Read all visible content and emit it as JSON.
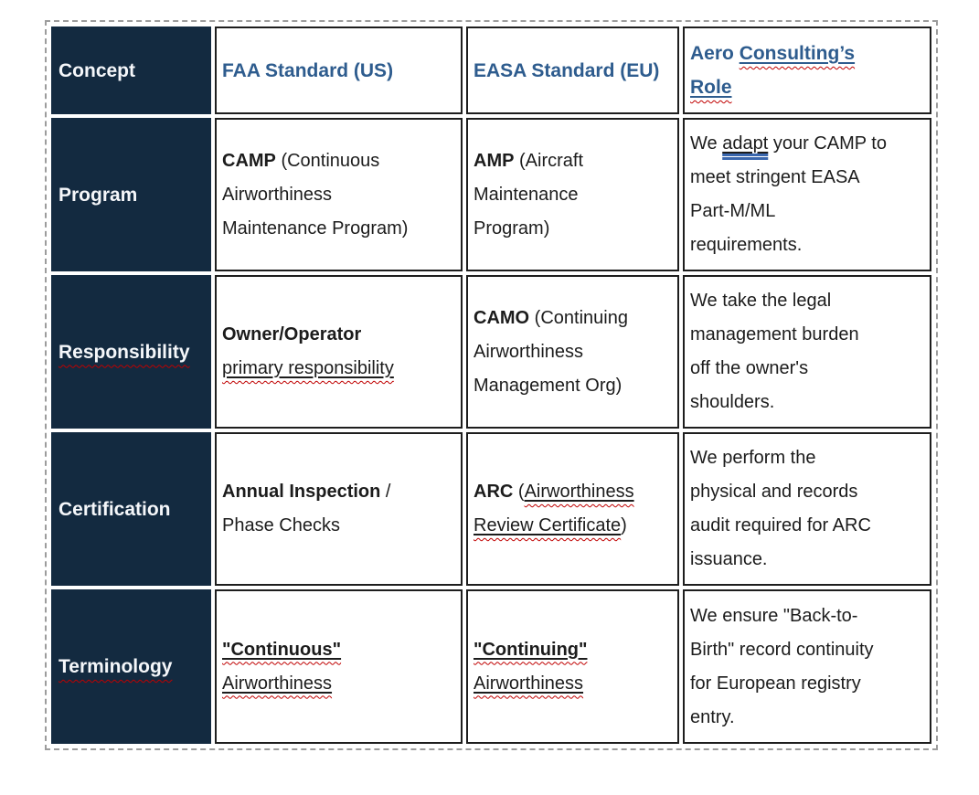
{
  "colors": {
    "row_header_navy": "#132a40",
    "column_header_blue": "#2e5c8e",
    "body_text": "#1c1c1c",
    "cell_border": "#1e1e1e",
    "outer_dashed_border": "#9c9c9c",
    "spellcheck_squiggle_red": "#c00000",
    "grammar_underline_blue": "#3a67ae"
  },
  "table": {
    "rows": [
      {
        "name": "header",
        "cells": [
          {
            "lines": [
              [
                {
                  "t": "Concept"
                }
              ]
            ]
          },
          {
            "lines": [
              [
                {
                  "t": "FAA Standard (US)"
                }
              ]
            ]
          },
          {
            "lines": [
              [
                {
                  "t": "EASA Standard (EU)"
                }
              ]
            ]
          },
          {
            "lines": [
              [
                {
                  "t": "Aero "
                },
                {
                  "t": "Consulting’s"
                }
              ],
              [
                {
                  "t": "Role"
                }
              ]
            ]
          }
        ]
      },
      {
        "name": "program",
        "cells": [
          {
            "lines": [
              [
                {
                  "t": "Program"
                }
              ]
            ]
          },
          {
            "lines": [
              [
                {
                  "t": "CAMP"
                },
                {
                  "t": " (Continuous"
                }
              ],
              [
                {
                  "t": "Airworthiness"
                }
              ],
              [
                {
                  "t": "Maintenance Program)"
                }
              ]
            ]
          },
          {
            "lines": [
              [
                {
                  "t": "AMP"
                },
                {
                  "t": " (Aircraft"
                }
              ],
              [
                {
                  "t": "Maintenance"
                }
              ],
              [
                {
                  "t": "Program)"
                }
              ]
            ]
          },
          {
            "lines": [
              [
                {
                  "t": "We "
                },
                {
                  "t": "adapt"
                },
                {
                  "t": " your CAMP to"
                }
              ],
              [
                {
                  "t": "meet stringent EASA"
                }
              ],
              [
                {
                  "t": "Part-M/ML"
                }
              ],
              [
                {
                  "t": "requirements."
                }
              ]
            ]
          }
        ]
      },
      {
        "name": "responsibility",
        "cells": [
          {
            "lines": [
              [
                {
                  "t": "Responsibility"
                }
              ]
            ]
          },
          {
            "lines": [
              [
                {
                  "t": "Owner/Operator"
                }
              ],
              [
                {
                  "t": "primary responsibility"
                }
              ]
            ]
          },
          {
            "lines": [
              [
                {
                  "t": "CAMO"
                },
                {
                  "t": " (Continuing"
                }
              ],
              [
                {
                  "t": "Airworthiness"
                }
              ],
              [
                {
                  "t": "Management Org)"
                }
              ]
            ]
          },
          {
            "lines": [
              [
                {
                  "t": "We take the legal"
                }
              ],
              [
                {
                  "t": "management burden"
                }
              ],
              [
                {
                  "t": "off the owner's"
                }
              ],
              [
                {
                  "t": "shoulders."
                }
              ]
            ]
          }
        ]
      },
      {
        "name": "certification",
        "cells": [
          {
            "lines": [
              [
                {
                  "t": "Certification"
                }
              ]
            ]
          },
          {
            "lines": [
              [
                {
                  "t": "Annual Inspection"
                },
                {
                  "t": " /"
                }
              ],
              [
                {
                  "t": "Phase Checks"
                }
              ]
            ]
          },
          {
            "lines": [
              [
                {
                  "t": "ARC"
                },
                {
                  "t": " ("
                },
                {
                  "t": "Airworthiness"
                }
              ],
              [
                {
                  "t": "Review Certificate"
                },
                {
                  "t": ")"
                }
              ]
            ]
          },
          {
            "lines": [
              [
                {
                  "t": "We perform the"
                }
              ],
              [
                {
                  "t": "physical and records"
                }
              ],
              [
                {
                  "t": "audit required for ARC"
                }
              ],
              [
                {
                  "t": "issuance."
                }
              ]
            ]
          }
        ]
      },
      {
        "name": "terminology",
        "cells": [
          {
            "lines": [
              [
                {
                  "t": "Terminology"
                }
              ]
            ]
          },
          {
            "lines": [
              [
                {
                  "t": "\"Continuous\""
                }
              ],
              [
                {
                  "t": "Airworthiness"
                }
              ]
            ]
          },
          {
            "lines": [
              [
                {
                  "t": "\"Continuing\""
                }
              ],
              [
                {
                  "t": "Airworthiness"
                }
              ]
            ]
          },
          {
            "lines": [
              [
                {
                  "t": "We ensure \"Back-to-"
                }
              ],
              [
                {
                  "t": "Birth\" record continuity"
                }
              ],
              [
                {
                  "t": "for European registry"
                }
              ],
              [
                {
                  "t": "entry."
                }
              ]
            ]
          }
        ]
      }
    ]
  }
}
